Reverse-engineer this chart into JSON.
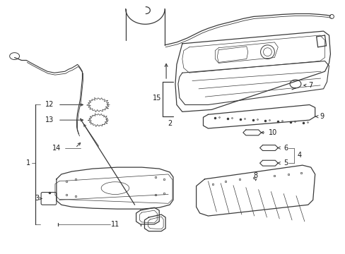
{
  "bg_color": "#ffffff",
  "line_color": "#3a3a3a",
  "text_color": "#1a1a1a",
  "lw_main": 0.9,
  "lw_thin": 0.5,
  "fs": 7.0
}
